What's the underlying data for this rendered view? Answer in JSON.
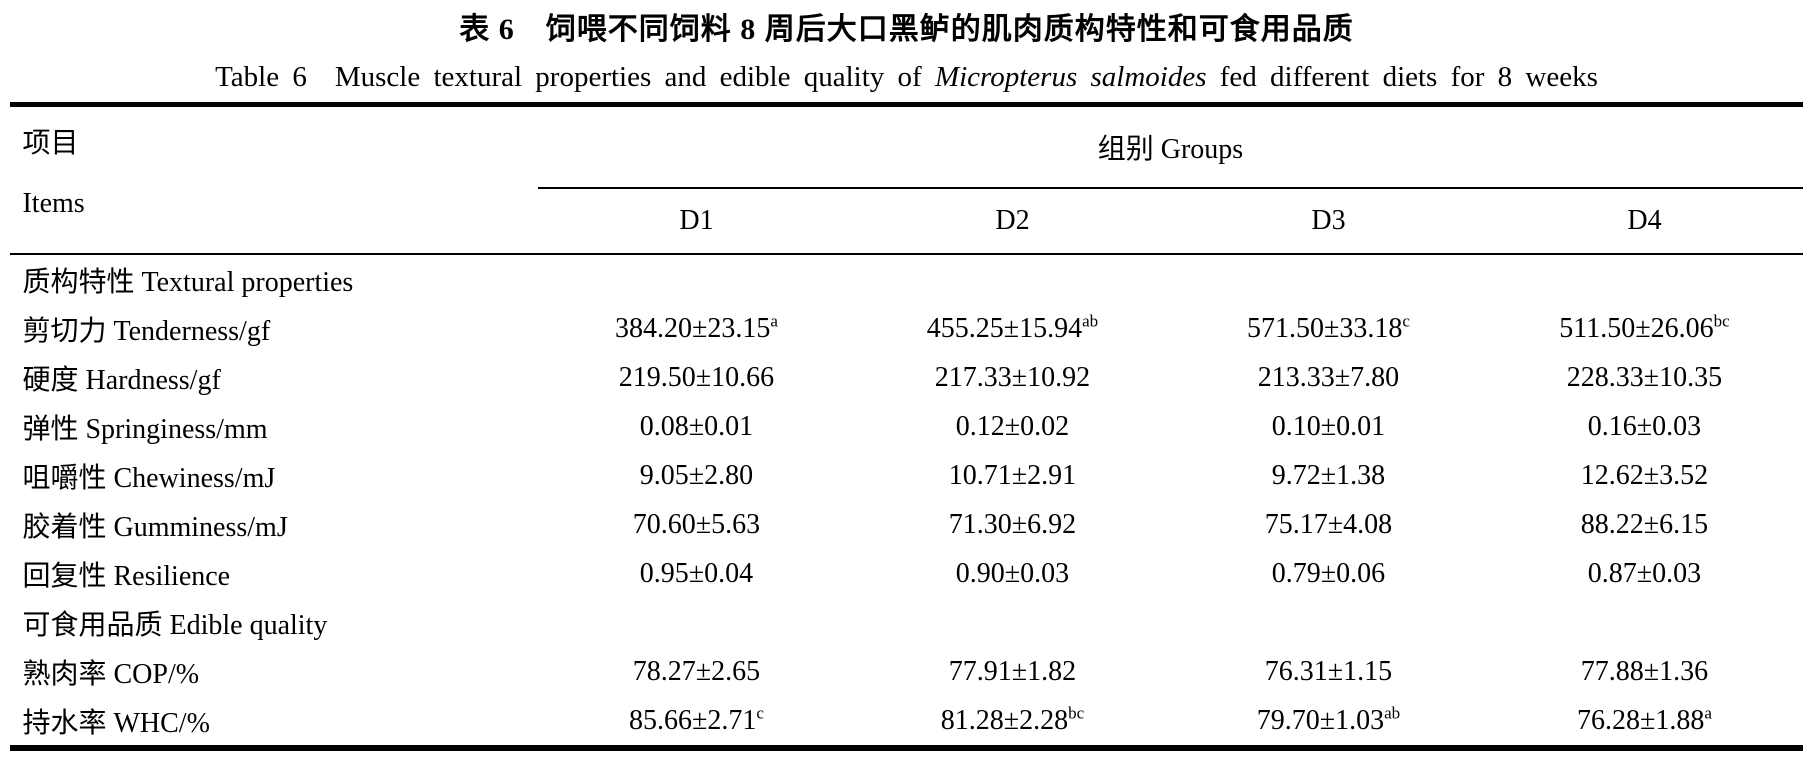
{
  "caption": {
    "zh": "表 6　饲喂不同饲料 8 周后大口黑鲈的肌肉质构特性和可食用品质",
    "en_prefix": "Table 6",
    "en_before_italic": "Muscle textural properties and edible quality of",
    "en_italic": "Micropterus salmoides",
    "en_after_italic": "fed different diets for 8 weeks"
  },
  "table": {
    "items_header_zh": "项目",
    "items_header_en": "Items",
    "groups_header": "组别 Groups",
    "group_columns": [
      "D1",
      "D2",
      "D3",
      "D4"
    ],
    "rows": [
      {
        "type": "section",
        "label": "质构特性 Textural properties"
      },
      {
        "type": "data",
        "label": "剪切力 Tenderness/gf",
        "cells": [
          {
            "v": "384.20±23.15",
            "sup": "a"
          },
          {
            "v": "455.25±15.94",
            "sup": "ab"
          },
          {
            "v": "571.50±33.18",
            "sup": "c"
          },
          {
            "v": "511.50±26.06",
            "sup": "bc"
          }
        ]
      },
      {
        "type": "data",
        "label": "硬度 Hardness/gf",
        "cells": [
          {
            "v": "219.50±10.66"
          },
          {
            "v": "217.33±10.92"
          },
          {
            "v": "213.33±7.80"
          },
          {
            "v": "228.33±10.35"
          }
        ]
      },
      {
        "type": "data",
        "label": "弹性 Springiness/mm",
        "cells": [
          {
            "v": "0.08±0.01"
          },
          {
            "v": "0.12±0.02"
          },
          {
            "v": "0.10±0.01"
          },
          {
            "v": "0.16±0.03"
          }
        ]
      },
      {
        "type": "data",
        "label": "咀嚼性 Chewiness/mJ",
        "cells": [
          {
            "v": "9.05±2.80"
          },
          {
            "v": "10.71±2.91"
          },
          {
            "v": "9.72±1.38"
          },
          {
            "v": "12.62±3.52"
          }
        ]
      },
      {
        "type": "data",
        "label": "胶着性 Gumminess/mJ",
        "cells": [
          {
            "v": "70.60±5.63"
          },
          {
            "v": "71.30±6.92"
          },
          {
            "v": "75.17±4.08"
          },
          {
            "v": "88.22±6.15"
          }
        ]
      },
      {
        "type": "data",
        "label": "回复性 Resilience",
        "cells": [
          {
            "v": "0.95±0.04"
          },
          {
            "v": "0.90±0.03"
          },
          {
            "v": "0.79±0.06"
          },
          {
            "v": "0.87±0.03"
          }
        ]
      },
      {
        "type": "section",
        "label": "可食用品质 Edible quality"
      },
      {
        "type": "data",
        "label": "熟肉率 COP/%",
        "cells": [
          {
            "v": "78.27±2.65"
          },
          {
            "v": "77.91±1.82"
          },
          {
            "v": "76.31±1.15"
          },
          {
            "v": "77.88±1.36"
          }
        ]
      },
      {
        "type": "data",
        "label": "持水率 WHC/%",
        "cells": [
          {
            "v": "85.66±2.71",
            "sup": "c"
          },
          {
            "v": "81.28±2.28",
            "sup": "bc"
          },
          {
            "v": "79.70±1.03",
            "sup": "ab"
          },
          {
            "v": "76.28±1.88",
            "sup": "a"
          }
        ]
      }
    ]
  }
}
